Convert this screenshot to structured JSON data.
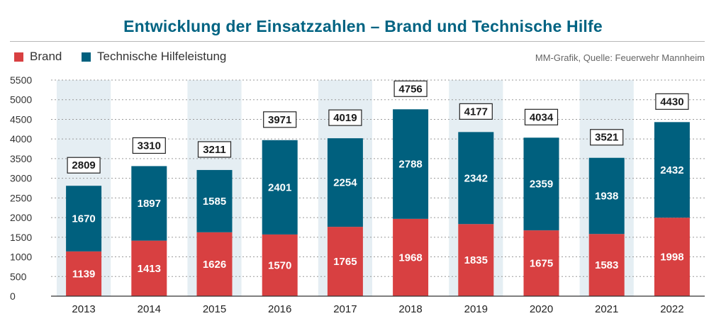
{
  "title": "Entwicklung der Einsatzzahlen – Brand und Technische Hilfe",
  "source": "MM-Grafik, Quelle: Feuerwehr Mannheim",
  "colors": {
    "brand": "#d84041",
    "thl": "#00607e",
    "band": "#e5eef3",
    "title": "#006382"
  },
  "chart_data": {
    "type": "bar",
    "stacked": true,
    "categories": [
      "2013",
      "2014",
      "2015",
      "2016",
      "2017",
      "2018",
      "2019",
      "2020",
      "2021",
      "2022"
    ],
    "series": [
      {
        "name": "Brand",
        "values": [
          1139,
          1413,
          1626,
          1570,
          1765,
          1968,
          1835,
          1675,
          1583,
          1998
        ]
      },
      {
        "name": "Technische Hilfeleistung",
        "values": [
          1670,
          1897,
          1585,
          2401,
          2254,
          2788,
          2342,
          2359,
          1938,
          2432
        ]
      }
    ],
    "totals": [
      2809,
      3310,
      3211,
      3971,
      4019,
      4756,
      4177,
      4034,
      3521,
      4430
    ],
    "ylim": [
      0,
      5500
    ],
    "yticks": [
      0,
      500,
      1000,
      1500,
      2000,
      2500,
      3000,
      3500,
      4000,
      4500,
      5000,
      5500
    ],
    "grid": true,
    "legend_position": "top-left"
  }
}
